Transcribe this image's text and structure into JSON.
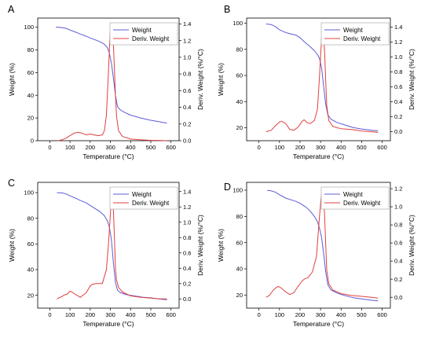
{
  "colors": {
    "weight": "#5b5bd6",
    "deriv": "#e0403f",
    "axis": "#000000",
    "legend_border": "#a0a0a0"
  },
  "chart_data": [
    {
      "panel": "A",
      "type": "line",
      "xlabel": "Temperature (°C)",
      "ylabel": "Weight (%)",
      "y2label": "Deriv. Weight (%/°C)",
      "xlim": [
        -60,
        640
      ],
      "ylim": [
        0,
        108
      ],
      "y2lim": [
        0,
        1.47
      ],
      "xticks": [
        0,
        100,
        200,
        300,
        400,
        500,
        600
      ],
      "yticks": [
        0,
        20,
        40,
        60,
        80,
        100
      ],
      "y2ticks": [
        0.0,
        0.2,
        0.4,
        0.6,
        0.8,
        1.0,
        1.2,
        1.4
      ],
      "series": [
        {
          "name": "Weight",
          "axis": "left",
          "x": [
            30,
            50,
            80,
            100,
            130,
            150,
            180,
            200,
            230,
            250,
            270,
            285,
            295,
            305,
            315,
            325,
            335,
            350,
            370,
            400,
            450,
            500,
            550,
            580
          ],
          "y": [
            100,
            99.8,
            99,
            97.5,
            95.5,
            94,
            92,
            90.5,
            88.5,
            87,
            85,
            82,
            77,
            68,
            55,
            40,
            30,
            27,
            25,
            22.5,
            20,
            18,
            16.5,
            15.5
          ]
        },
        {
          "name": "Deriv. Weight",
          "axis": "right",
          "x": [
            40,
            60,
            80,
            100,
            120,
            140,
            160,
            180,
            200,
            220,
            240,
            260,
            270,
            280,
            290,
            295,
            300,
            305,
            310,
            315,
            320,
            325,
            330,
            340,
            360,
            400,
            450,
            500,
            550,
            580
          ],
          "y": [
            0.0,
            0.01,
            0.03,
            0.06,
            0.09,
            0.1,
            0.09,
            0.07,
            0.08,
            0.07,
            0.06,
            0.07,
            0.12,
            0.3,
            0.8,
            1.1,
            1.35,
            1.38,
            1.32,
            1.15,
            0.85,
            0.55,
            0.3,
            0.12,
            0.05,
            0.02,
            0.01,
            0.005,
            0.002,
            0.0
          ]
        }
      ],
      "legend": {
        "position": "top-right",
        "entries": [
          "Weight",
          "Deriv. Weight"
        ]
      }
    },
    {
      "panel": "B",
      "type": "line",
      "xlabel": "Temperature (°C)",
      "ylabel": "Weight (%)",
      "y2label": "Deriv. Weight (%/°C)",
      "xlim": [
        -60,
        640
      ],
      "ylim": [
        10,
        104
      ],
      "y2lim": [
        -0.12,
        1.52
      ],
      "xticks": [
        0,
        100,
        200,
        300,
        400,
        500,
        600
      ],
      "yticks": [
        20,
        40,
        60,
        80,
        100
      ],
      "y2ticks": [
        0.0,
        0.2,
        0.4,
        0.6,
        0.8,
        1.0,
        1.2,
        1.4
      ],
      "series": [
        {
          "name": "Weight",
          "axis": "left",
          "x": [
            35,
            60,
            80,
            100,
            130,
            150,
            180,
            200,
            220,
            250,
            270,
            285,
            295,
            305,
            315,
            325,
            335,
            350,
            380,
            420,
            460,
            500,
            550,
            580
          ],
          "y": [
            99.5,
            99,
            97.5,
            95,
            93,
            92,
            91,
            89,
            86,
            82,
            79,
            76,
            73,
            66,
            52,
            38,
            30,
            26.5,
            24,
            22,
            20,
            19,
            18,
            17.5
          ]
        },
        {
          "name": "Deriv. Weight",
          "axis": "right",
          "x": [
            35,
            60,
            80,
            100,
            110,
            130,
            150,
            170,
            190,
            210,
            220,
            235,
            250,
            270,
            285,
            295,
            305,
            310,
            315,
            320,
            325,
            330,
            340,
            360,
            400,
            450,
            500,
            550,
            580
          ],
          "y": [
            0.0,
            0.02,
            0.08,
            0.13,
            0.14,
            0.11,
            0.03,
            0.02,
            0.06,
            0.14,
            0.16,
            0.12,
            0.11,
            0.15,
            0.3,
            0.75,
            1.25,
            1.38,
            1.3,
            1.05,
            0.7,
            0.35,
            0.15,
            0.07,
            0.04,
            0.03,
            0.01,
            0.0,
            -0.01
          ]
        }
      ],
      "legend": {
        "position": "top-right",
        "entries": [
          "Weight",
          "Deriv. Weight"
        ]
      }
    },
    {
      "panel": "C",
      "type": "line",
      "xlabel": "Temperature (°C)",
      "ylabel": "Weight (%)",
      "y2label": "Deriv. Weight (%/°C)",
      "xlim": [
        -60,
        640
      ],
      "ylim": [
        10,
        108
      ],
      "y2lim": [
        -0.12,
        1.52
      ],
      "xticks": [
        0,
        100,
        200,
        300,
        400,
        500,
        600
      ],
      "yticks": [
        20,
        40,
        60,
        80,
        100
      ],
      "y2ticks": [
        0.0,
        0.2,
        0.4,
        0.6,
        0.8,
        1.0,
        1.2,
        1.4
      ],
      "series": [
        {
          "name": "Weight",
          "axis": "left",
          "x": [
            35,
            60,
            80,
            100,
            130,
            150,
            180,
            200,
            230,
            250,
            270,
            285,
            295,
            305,
            315,
            325,
            335,
            350,
            380,
            420,
            460,
            500,
            550,
            580
          ],
          "y": [
            100,
            99.8,
            99,
            97.5,
            95.5,
            94,
            92,
            90,
            87,
            85,
            82,
            78,
            73,
            63,
            45,
            30,
            24,
            22,
            20.5,
            19.5,
            18.5,
            18,
            17,
            16.5
          ]
        },
        {
          "name": "Deriv. Weight",
          "axis": "right",
          "x": [
            35,
            50,
            60,
            70,
            85,
            100,
            110,
            125,
            140,
            150,
            165,
            180,
            200,
            210,
            230,
            260,
            280,
            290,
            300,
            305,
            310,
            315,
            320,
            325,
            330,
            340,
            360,
            400,
            450,
            500,
            550,
            580
          ],
          "y": [
            0.0,
            0.02,
            0.03,
            0.05,
            0.06,
            0.1,
            0.09,
            0.06,
            0.04,
            0.02,
            0.05,
            0.08,
            0.17,
            0.19,
            0.2,
            0.2,
            0.38,
            0.7,
            1.12,
            1.32,
            1.28,
            1.15,
            0.8,
            0.4,
            0.25,
            0.15,
            0.09,
            0.04,
            0.02,
            0.01,
            0.0,
            0.0
          ]
        }
      ],
      "legend": {
        "position": "top-right",
        "entries": [
          "Weight",
          "Deriv. Weight"
        ]
      }
    },
    {
      "panel": "D",
      "type": "line",
      "xlabel": "Temperature (°C)",
      "ylabel": "Weight (%)",
      "y2label": "Deriv. Weight (%/°C)",
      "xlim": [
        -60,
        640
      ],
      "ylim": [
        10,
        106
      ],
      "y2lim": [
        -0.12,
        1.27
      ],
      "xticks": [
        0,
        100,
        200,
        300,
        400,
        500,
        600
      ],
      "yticks": [
        20,
        40,
        60,
        80,
        100
      ],
      "y2ticks": [
        0.0,
        0.2,
        0.4,
        0.6,
        0.8,
        1.0,
        1.2
      ],
      "series": [
        {
          "name": "Weight",
          "axis": "left",
          "x": [
            40,
            60,
            80,
            100,
            130,
            150,
            180,
            200,
            230,
            250,
            270,
            285,
            295,
            305,
            315,
            325,
            335,
            350,
            380,
            420,
            460,
            500,
            550,
            580
          ],
          "y": [
            99.8,
            99.5,
            98.5,
            96.5,
            94,
            93,
            91.5,
            90,
            87,
            84,
            80,
            76,
            71,
            64,
            52,
            38,
            28,
            24,
            21.5,
            19.5,
            18,
            17,
            16,
            15.5
          ]
        },
        {
          "name": "Deriv. Weight",
          "axis": "right",
          "x": [
            35,
            50,
            70,
            85,
            95,
            110,
            130,
            150,
            170,
            190,
            210,
            220,
            240,
            260,
            280,
            295,
            305,
            310,
            315,
            320,
            325,
            330,
            340,
            360,
            400,
            450,
            500,
            550,
            580
          ],
          "y": [
            0.0,
            0.02,
            0.08,
            0.11,
            0.12,
            0.1,
            0.06,
            0.03,
            0.05,
            0.12,
            0.18,
            0.2,
            0.22,
            0.28,
            0.45,
            0.9,
            1.15,
            1.18,
            1.1,
            0.9,
            0.6,
            0.3,
            0.15,
            0.08,
            0.04,
            0.02,
            0.01,
            0.0,
            -0.01
          ]
        }
      ],
      "legend": {
        "position": "top-right",
        "entries": [
          "Weight",
          "Deriv. Weight"
        ]
      }
    }
  ]
}
